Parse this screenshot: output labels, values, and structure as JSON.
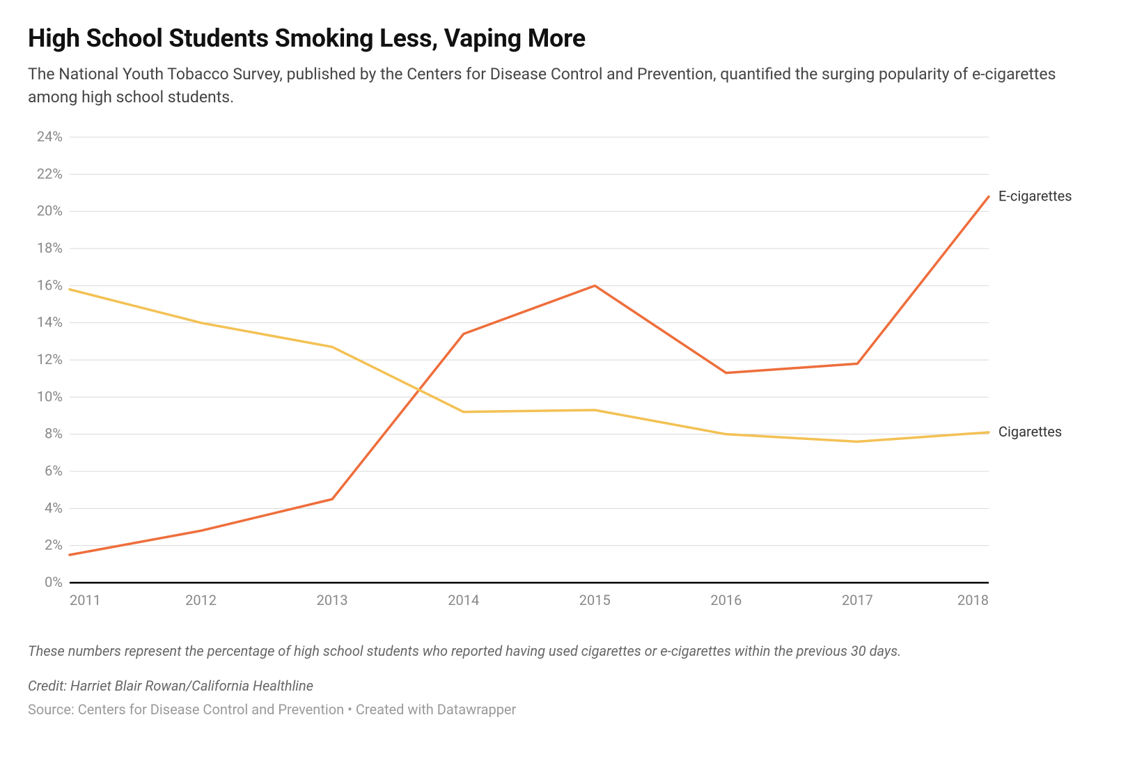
{
  "header": {
    "title": "High School Students Smoking Less, Vaping More",
    "subtitle": "The National Youth Tobacco Survey, published by the Centers for Disease Control and Prevention, quantified the surging popularity of e-cigarettes among high school students."
  },
  "chart": {
    "type": "line",
    "background_color": "#ffffff",
    "grid_color": "#d9d9d9",
    "axis_color": "#000000",
    "x": {
      "categories": [
        "2011",
        "2012",
        "2013",
        "2014",
        "2015",
        "2016",
        "2017",
        "2018"
      ],
      "label_color": "#888888",
      "label_fontsize": 20
    },
    "y": {
      "min": 0,
      "max": 24,
      "tick_step": 2,
      "suffix": "%",
      "label_color": "#888888",
      "label_fontsize": 20
    },
    "line_width": 3.5,
    "series": [
      {
        "name": "E-cigarettes",
        "color": "#ee6e3c",
        "values": [
          1.5,
          2.8,
          4.5,
          13.4,
          16.0,
          11.3,
          11.8,
          20.8
        ]
      },
      {
        "name": "Cigarettes",
        "color": "#f3c154",
        "values": [
          15.8,
          14.0,
          12.7,
          9.2,
          9.3,
          8.0,
          7.6,
          8.1
        ]
      }
    ],
    "series_label_fontsize": 20,
    "series_label_color": "#333333"
  },
  "footer": {
    "note": "These numbers represent the percentage of high school students who reported having used cigarettes or e-cigarettes within the previous 30 days.",
    "credit": "Credit: Harriet Blair Rowan/California Healthline",
    "source": "Source: Centers for Disease Control and Prevention • Created with Datawrapper"
  }
}
